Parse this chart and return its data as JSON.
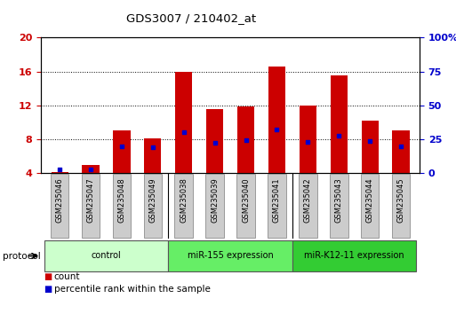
{
  "title": "GDS3007 / 210402_at",
  "samples": [
    "GSM235046",
    "GSM235047",
    "GSM235048",
    "GSM235049",
    "GSM235038",
    "GSM235039",
    "GSM235040",
    "GSM235041",
    "GSM235042",
    "GSM235043",
    "GSM235044",
    "GSM235045"
  ],
  "count_values": [
    4.1,
    4.9,
    9.0,
    8.1,
    16.0,
    11.5,
    11.8,
    16.6,
    12.0,
    15.5,
    10.2,
    9.0
  ],
  "percentile_values_left_scale": [
    4.4,
    4.35,
    7.1,
    7.0,
    8.8,
    7.55,
    7.9,
    9.1,
    7.65,
    8.4,
    7.75,
    7.1
  ],
  "count_base": 4.0,
  "ylim_left": [
    4,
    20
  ],
  "ylim_right": [
    0,
    100
  ],
  "yticks_left": [
    4,
    8,
    12,
    16,
    20
  ],
  "yticks_right": [
    0,
    25,
    50,
    75,
    100
  ],
  "ytick_labels_left": [
    "4",
    "8",
    "12",
    "16",
    "20"
  ],
  "ytick_labels_right": [
    "0",
    "25",
    "50",
    "75",
    "100%"
  ],
  "bar_color": "#cc0000",
  "dot_color": "#0000cc",
  "protocol_groups": [
    {
      "label": "control",
      "start": 0,
      "end": 4,
      "color": "#ccffcc"
    },
    {
      "label": "miR-155 expression",
      "start": 4,
      "end": 8,
      "color": "#66ee66"
    },
    {
      "label": "miR-K12-11 expression",
      "start": 8,
      "end": 12,
      "color": "#33cc33"
    }
  ],
  "protocol_label": "protocol",
  "legend_count_label": "count",
  "legend_pct_label": "percentile rank within the sample",
  "bar_width": 0.55,
  "tick_label_color_left": "#cc0000",
  "tick_label_color_right": "#0000cc",
  "label_bg_color": "#cccccc",
  "label_edge_color": "#999999"
}
